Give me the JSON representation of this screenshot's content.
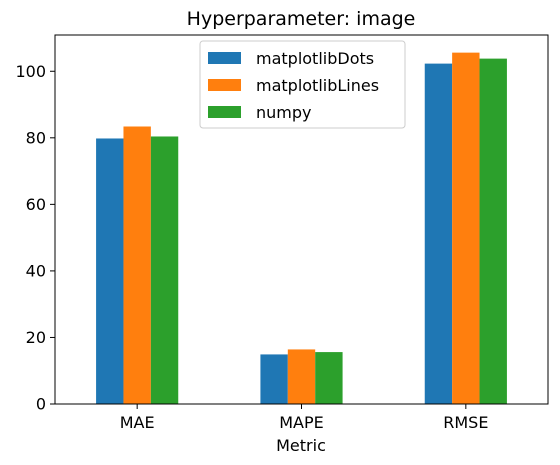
{
  "chart_data": {
    "type": "bar",
    "title": "Hyperparameter: image",
    "xlabel": "Metric",
    "ylabel": "",
    "categories": [
      "MAE",
      "MAPE",
      "RMSE"
    ],
    "series": [
      {
        "name": "matplotlibDots",
        "color": "#1f77b4",
        "values": [
          79.8,
          14.9,
          102.3
        ]
      },
      {
        "name": "matplotlibLines",
        "color": "#ff7f0e",
        "values": [
          83.4,
          16.4,
          105.6
        ]
      },
      {
        "name": "numpy",
        "color": "#2ca02c",
        "values": [
          80.4,
          15.6,
          103.8
        ]
      }
    ],
    "ylim": [
      0,
      110.9
    ],
    "yticks": [
      0,
      20,
      40,
      60,
      80,
      100
    ],
    "legend_position": "top-center",
    "grid": false
  }
}
